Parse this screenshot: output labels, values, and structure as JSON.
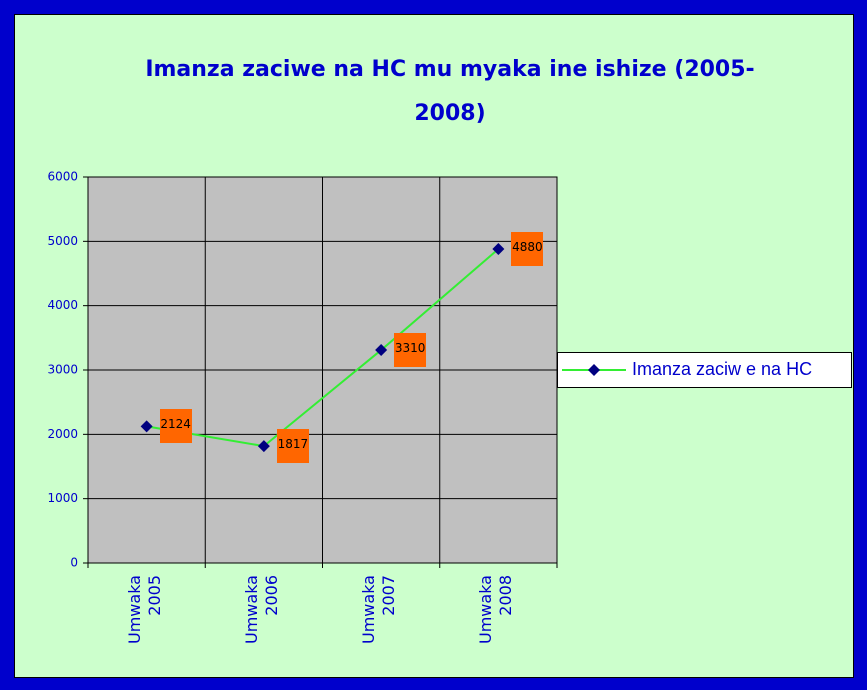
{
  "chart_data": {
    "type": "line",
    "title": "Imanza zaciwe na HC mu myaka ine ishize (2005-2008)",
    "categories": [
      "Umwaka 2005",
      "Umwaka 2006",
      "Umwaka 2007",
      "Umwaka 2008"
    ],
    "series": [
      {
        "name": "Imanza zaciw e na HC",
        "color": "#33ee33",
        "marker_color": "#000080",
        "values": [
          2124,
          1817,
          3310,
          4880
        ]
      }
    ],
    "ylim": [
      0,
      6000
    ],
    "yticks": [
      0,
      1000,
      2000,
      3000,
      4000,
      5000,
      6000
    ],
    "grid": true,
    "legend": "right",
    "label_color": "#ff6600"
  }
}
